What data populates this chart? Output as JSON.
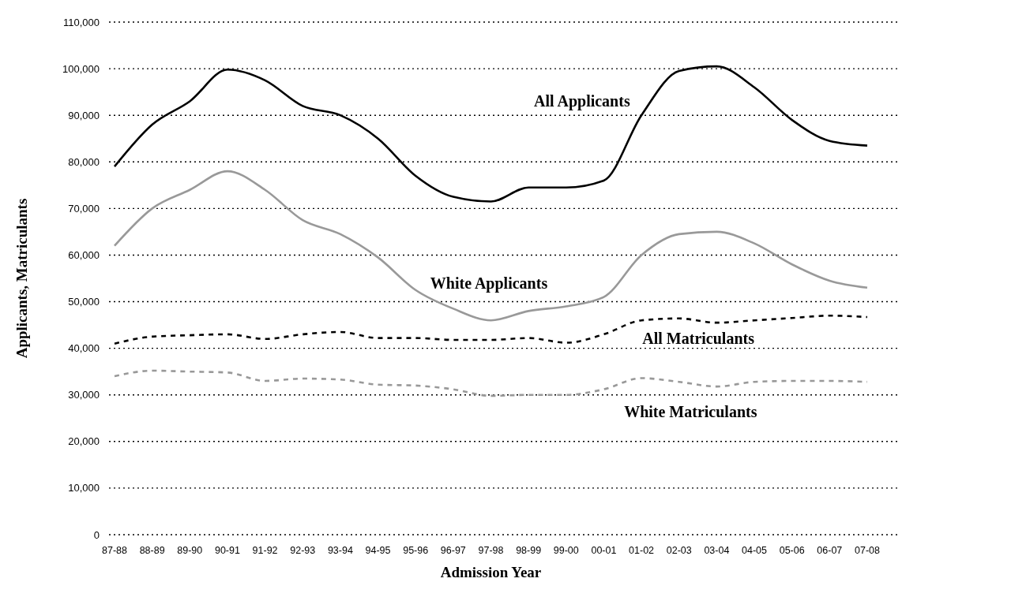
{
  "chart_data": {
    "type": "line",
    "xlabel": "Admission Year",
    "ylabel": "Applicants, Matriculants",
    "categories": [
      "87-88",
      "88-89",
      "89-90",
      "90-91",
      "91-92",
      "92-93",
      "93-94",
      "94-95",
      "95-96",
      "96-97",
      "97-98",
      "98-99",
      "99-00",
      "00-01",
      "01-02",
      "02-03",
      "03-04",
      "04-05",
      "05-06",
      "06-07",
      "07-08"
    ],
    "series": [
      {
        "name": "All Applicants",
        "color": "#000000",
        "line_style": "solid",
        "values": [
          79000,
          88000,
          93000,
          99800,
          97500,
          92000,
          90000,
          85000,
          77000,
          72500,
          71500,
          74500,
          74500,
          76000,
          90000,
          99500,
          100500,
          96000,
          89000,
          84500,
          83500
        ]
      },
      {
        "name": "White Applicants",
        "color": "#999999",
        "line_style": "solid",
        "values": [
          62000,
          70000,
          74000,
          78000,
          74000,
          67500,
          64500,
          59500,
          52500,
          48500,
          46000,
          48000,
          49000,
          51000,
          60000,
          64500,
          65000,
          62500,
          58000,
          54500,
          53000
        ]
      },
      {
        "name": "All Matriculants",
        "color": "#000000",
        "line_style": "dashed",
        "values": [
          41000,
          42500,
          42800,
          43000,
          42000,
          43000,
          43500,
          42200,
          42200,
          41800,
          41800,
          42200,
          41200,
          43000,
          46000,
          46400,
          45500,
          46000,
          46500,
          47000,
          46700
        ]
      },
      {
        "name": "White Matriculants",
        "color": "#999999",
        "line_style": "dashed",
        "values": [
          34000,
          35200,
          35000,
          34800,
          33000,
          33500,
          33300,
          32200,
          32000,
          31200,
          29800,
          30000,
          30000,
          31200,
          33600,
          32800,
          31800,
          32800,
          33000,
          33000,
          32800
        ]
      }
    ],
    "ylim": [
      0,
      110000
    ],
    "yticks": [
      {
        "value": 0,
        "label": "0"
      },
      {
        "value": 10000,
        "label": "10,000"
      },
      {
        "value": 20000,
        "label": "20,000"
      },
      {
        "value": 30000,
        "label": "30,000"
      },
      {
        "value": 40000,
        "label": "40,000"
      },
      {
        "value": 50000,
        "label": "50,000"
      },
      {
        "value": 60000,
        "label": "60,000"
      },
      {
        "value": 70000,
        "label": "70,000"
      },
      {
        "value": 80000,
        "label": "80,000"
      },
      {
        "value": 90000,
        "label": "90,000"
      },
      {
        "value": 100000,
        "label": "100,000"
      },
      {
        "value": 110000,
        "label": "110,000"
      }
    ],
    "grid": "y"
  }
}
